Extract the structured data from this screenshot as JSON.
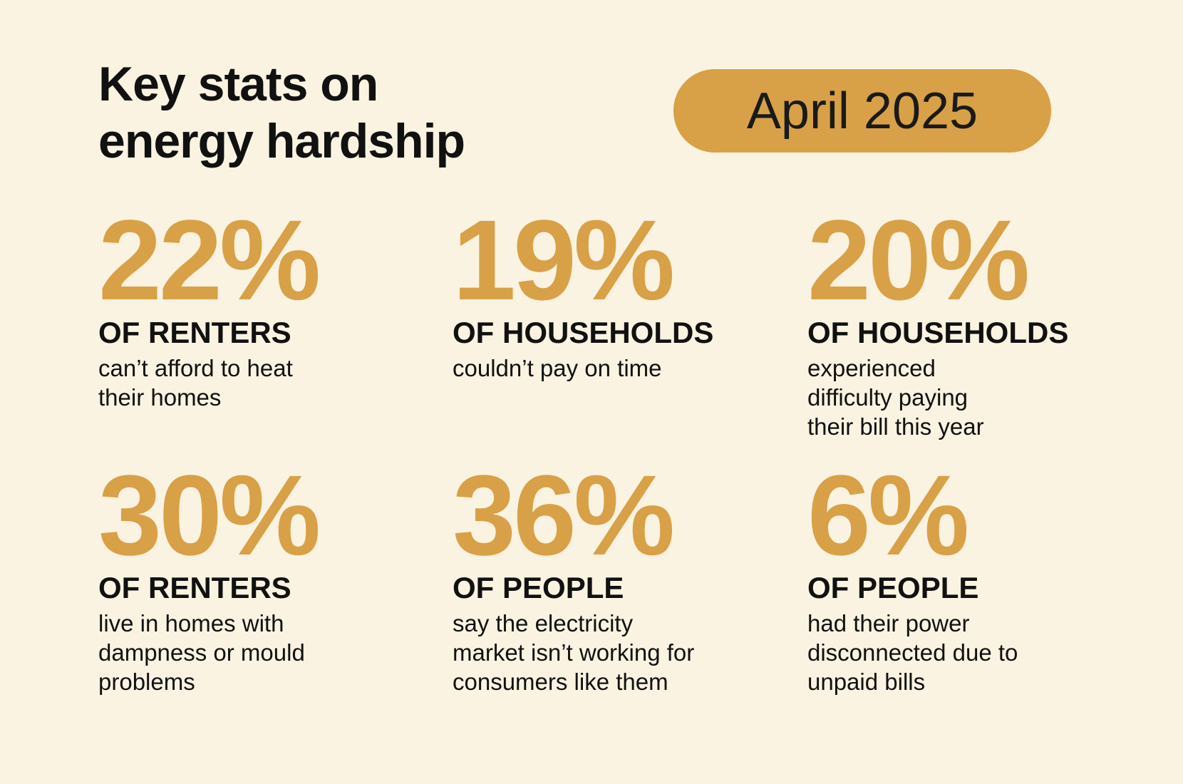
{
  "header": {
    "title": [
      "Key stats on",
      "energy hardship"
    ],
    "date": "April 2025"
  },
  "stats": [
    {
      "value": "22%",
      "heading": "OF RENTERS",
      "description": [
        "can’t afford to heat",
        "their homes"
      ]
    },
    {
      "value": "19%",
      "heading": "OF HOUSEHOLDS",
      "description": [
        "couldn’t pay on time"
      ]
    },
    {
      "value": "20%",
      "heading": "OF HOUSEHOLDS",
      "description": [
        "experienced",
        "difficulty paying",
        "their bill this year"
      ]
    },
    {
      "value": "30%",
      "heading": "OF RENTERS",
      "description": [
        "live in homes with",
        "dampness or mould",
        "problems"
      ]
    },
    {
      "value": "36%",
      "heading": "OF PEOPLE",
      "description": [
        "say the electricity",
        "market isn’t working for",
        "consumers like them"
      ]
    },
    {
      "value": "6%",
      "heading": "OF PEOPLE",
      "description": [
        "had their power",
        "disconnected due to",
        "unpaid bills"
      ]
    }
  ]
}
